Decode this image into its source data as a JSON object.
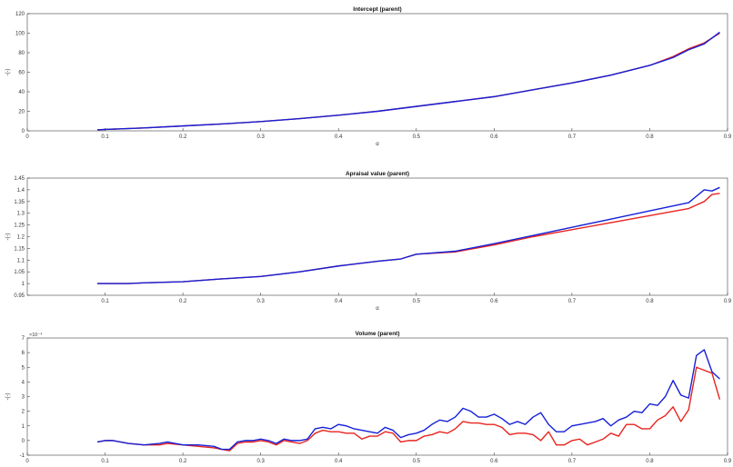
{
  "chart_data": [
    {
      "type": "line",
      "title": "Intercept (parent)",
      "xlabel": "α",
      "ylabel": "-(-)",
      "xlim": [
        0,
        0.9
      ],
      "ylim": [
        0,
        120
      ],
      "x_ticks": [
        0,
        0.1,
        0.2,
        0.3,
        0.4,
        0.5,
        0.6,
        0.7,
        0.8,
        0.9
      ],
      "y_ticks": [
        0,
        20,
        40,
        60,
        80,
        100,
        120
      ],
      "x_tick_labels": [
        "0",
        "0.1",
        "0.2",
        "0.3",
        "0.4",
        "0.5",
        "0.6",
        "0.7",
        "0.8",
        "0.9"
      ],
      "y_tick_labels": [
        "0",
        "20",
        "40",
        "60",
        "80",
        "100",
        "120"
      ],
      "grid": false,
      "series": [
        {
          "color": "#e8231f",
          "x": [
            0.09,
            0.1,
            0.12,
            0.15,
            0.2,
            0.25,
            0.3,
            0.35,
            0.4,
            0.45,
            0.5,
            0.55,
            0.6,
            0.65,
            0.7,
            0.75,
            0.8,
            0.83,
            0.85,
            0.87,
            0.89
          ],
          "y": [
            1,
            1.5,
            2,
            3,
            5,
            7,
            9.5,
            12.5,
            16,
            20,
            25,
            30,
            35,
            42,
            49,
            57,
            67,
            76,
            84,
            90,
            100
          ]
        },
        {
          "color": "#1520d6",
          "x": [
            0.09,
            0.1,
            0.12,
            0.15,
            0.2,
            0.25,
            0.3,
            0.35,
            0.4,
            0.45,
            0.5,
            0.55,
            0.6,
            0.65,
            0.7,
            0.75,
            0.8,
            0.83,
            0.85,
            0.87,
            0.89
          ],
          "y": [
            1,
            1.5,
            2,
            3,
            5,
            7,
            9.5,
            12.5,
            16,
            20,
            25,
            30,
            35,
            42,
            49,
            57,
            67,
            75,
            83,
            89,
            101
          ]
        }
      ]
    },
    {
      "type": "line",
      "title": "Apraisal value (parent)",
      "xlabel": "α",
      "ylabel": "-(-)",
      "xlim": [
        0,
        0.9
      ],
      "ylim": [
        0.95,
        1.45
      ],
      "x_ticks": [
        0.1,
        0.2,
        0.3,
        0.4,
        0.5,
        0.6,
        0.7,
        0.8,
        0.9
      ],
      "y_ticks": [
        0.95,
        1,
        1.05,
        1.1,
        1.15,
        1.2,
        1.25,
        1.3,
        1.35,
        1.4,
        1.45
      ],
      "x_tick_labels": [
        "0.1",
        "0.2",
        "0.3",
        "0.4",
        "0.5",
        "0.6",
        "0.7",
        "0.8",
        "0.9"
      ],
      "y_tick_labels": [
        "0.95",
        "1",
        "1.05",
        "1.1",
        "1.15",
        "1.2",
        "1.25",
        "1.3",
        "1.35",
        "1.4",
        "1.45"
      ],
      "grid": false,
      "series": [
        {
          "color": "#e8231f",
          "x": [
            0.09,
            0.1,
            0.13,
            0.15,
            0.2,
            0.25,
            0.3,
            0.35,
            0.4,
            0.45,
            0.48,
            0.5,
            0.55,
            0.6,
            0.65,
            0.7,
            0.75,
            0.8,
            0.85,
            0.87,
            0.88,
            0.89
          ],
          "y": [
            1.0,
            1.0,
            1.0,
            1.003,
            1.008,
            1.02,
            1.03,
            1.05,
            1.075,
            1.095,
            1.105,
            1.125,
            1.135,
            1.165,
            1.2,
            1.23,
            1.26,
            1.29,
            1.32,
            1.35,
            1.38,
            1.385
          ]
        },
        {
          "color": "#1520d6",
          "x": [
            0.09,
            0.1,
            0.13,
            0.15,
            0.2,
            0.25,
            0.3,
            0.35,
            0.4,
            0.45,
            0.48,
            0.5,
            0.55,
            0.6,
            0.65,
            0.7,
            0.75,
            0.8,
            0.85,
            0.87,
            0.88,
            0.89
          ],
          "y": [
            1.0,
            1.0,
            1.0,
            1.003,
            1.008,
            1.02,
            1.03,
            1.05,
            1.075,
            1.095,
            1.105,
            1.125,
            1.138,
            1.17,
            1.205,
            1.24,
            1.275,
            1.31,
            1.345,
            1.4,
            1.395,
            1.41
          ]
        }
      ]
    },
    {
      "type": "line",
      "title": "Volume (parent)",
      "xlabel": "",
      "ylabel": "-(-)",
      "exponent_label": "×10⁻⁴",
      "xlim": [
        0,
        0.9
      ],
      "ylim": [
        -1,
        7
      ],
      "x_ticks": [
        0,
        0.1,
        0.2,
        0.3,
        0.4,
        0.5,
        0.6,
        0.7,
        0.8,
        0.9
      ],
      "y_ticks": [
        -1,
        0,
        1,
        2,
        3,
        4,
        5,
        6,
        7
      ],
      "x_tick_labels": [
        "0",
        "0.1",
        "0.2",
        "0.3",
        "0.4",
        "0.5",
        "0.6",
        "0.7",
        "0.8",
        "0.9"
      ],
      "y_tick_labels": [
        "-1",
        "0",
        "1",
        "2",
        "3",
        "4",
        "5",
        "6",
        "7"
      ],
      "grid": false,
      "series": [
        {
          "color": "#e8231f",
          "x": [
            0.09,
            0.1,
            0.11,
            0.13,
            0.15,
            0.17,
            0.18,
            0.2,
            0.22,
            0.24,
            0.25,
            0.26,
            0.27,
            0.28,
            0.29,
            0.3,
            0.31,
            0.32,
            0.33,
            0.34,
            0.35,
            0.36,
            0.37,
            0.38,
            0.39,
            0.4,
            0.41,
            0.42,
            0.43,
            0.44,
            0.45,
            0.46,
            0.47,
            0.48,
            0.49,
            0.5,
            0.51,
            0.52,
            0.53,
            0.54,
            0.55,
            0.56,
            0.57,
            0.58,
            0.59,
            0.6,
            0.61,
            0.62,
            0.63,
            0.64,
            0.65,
            0.66,
            0.67,
            0.68,
            0.69,
            0.7,
            0.71,
            0.72,
            0.73,
            0.74,
            0.75,
            0.76,
            0.77,
            0.78,
            0.79,
            0.8,
            0.81,
            0.82,
            0.83,
            0.84,
            0.85,
            0.86,
            0.87,
            0.88,
            0.89
          ],
          "y": [
            -0.1,
            0.0,
            0.0,
            -0.2,
            -0.3,
            -0.3,
            -0.2,
            -0.3,
            -0.4,
            -0.5,
            -0.6,
            -0.7,
            -0.2,
            -0.1,
            -0.1,
            0.0,
            -0.1,
            -0.3,
            0.0,
            -0.1,
            -0.2,
            0.0,
            0.5,
            0.7,
            0.6,
            0.6,
            0.5,
            0.5,
            0.1,
            0.3,
            0.3,
            0.6,
            0.5,
            -0.1,
            0.0,
            0.0,
            0.3,
            0.4,
            0.6,
            0.5,
            0.8,
            1.3,
            1.2,
            1.2,
            1.1,
            1.1,
            0.9,
            0.4,
            0.5,
            0.5,
            0.4,
            0.0,
            0.6,
            -0.3,
            -0.3,
            0.0,
            0.1,
            -0.3,
            -0.1,
            0.1,
            0.5,
            0.3,
            1.1,
            1.1,
            0.8,
            0.8,
            1.4,
            1.7,
            2.3,
            1.3,
            2.1,
            5.0,
            4.8,
            4.6,
            2.8
          ]
        },
        {
          "color": "#1520d6",
          "x": [
            0.09,
            0.1,
            0.11,
            0.13,
            0.15,
            0.17,
            0.18,
            0.2,
            0.22,
            0.24,
            0.25,
            0.26,
            0.27,
            0.28,
            0.29,
            0.3,
            0.31,
            0.32,
            0.33,
            0.34,
            0.35,
            0.36,
            0.37,
            0.38,
            0.39,
            0.4,
            0.41,
            0.42,
            0.43,
            0.44,
            0.45,
            0.46,
            0.47,
            0.48,
            0.49,
            0.5,
            0.51,
            0.52,
            0.53,
            0.54,
            0.55,
            0.56,
            0.57,
            0.58,
            0.59,
            0.6,
            0.61,
            0.62,
            0.63,
            0.64,
            0.65,
            0.66,
            0.67,
            0.68,
            0.69,
            0.7,
            0.71,
            0.72,
            0.73,
            0.74,
            0.75,
            0.76,
            0.77,
            0.78,
            0.79,
            0.8,
            0.81,
            0.82,
            0.83,
            0.84,
            0.85,
            0.86,
            0.87,
            0.88,
            0.89
          ],
          "y": [
            -0.1,
            0.0,
            0.0,
            -0.2,
            -0.3,
            -0.2,
            -0.1,
            -0.3,
            -0.3,
            -0.4,
            -0.6,
            -0.6,
            -0.1,
            0.0,
            0.0,
            0.1,
            0.0,
            -0.2,
            0.1,
            0.0,
            0.0,
            0.1,
            0.8,
            0.9,
            0.8,
            1.1,
            1.0,
            0.8,
            0.7,
            0.6,
            0.5,
            0.9,
            0.7,
            0.2,
            0.4,
            0.5,
            0.7,
            1.1,
            1.4,
            1.3,
            1.6,
            2.2,
            2.0,
            1.6,
            1.6,
            1.8,
            1.5,
            1.1,
            1.3,
            1.1,
            1.6,
            1.9,
            1.1,
            0.6,
            0.6,
            1.0,
            1.1,
            1.2,
            1.3,
            1.5,
            1.0,
            1.4,
            1.6,
            2.0,
            1.9,
            2.5,
            2.4,
            3.0,
            4.1,
            3.1,
            2.9,
            5.8,
            6.2,
            4.7,
            4.2
          ]
        }
      ]
    }
  ]
}
